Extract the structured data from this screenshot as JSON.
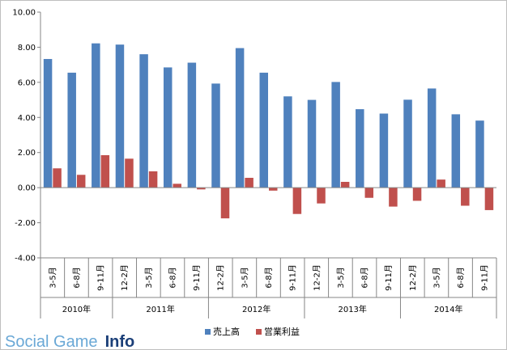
{
  "chart_data": {
    "type": "bar",
    "categories": [
      "3-5月",
      "6-8月",
      "9-11月",
      "12-2月",
      "3-5月",
      "6-8月",
      "9-11月",
      "12-2月",
      "3-5月",
      "6-8月",
      "9-11月",
      "12-2月",
      "3-5月",
      "6-8月",
      "9-11月",
      "12-2月",
      "3-5月",
      "6-8月",
      "9-11月"
    ],
    "groups": [
      {
        "label": "2010年",
        "start": 0,
        "end": 2
      },
      {
        "label": "2011年",
        "start": 3,
        "end": 6
      },
      {
        "label": "2012年",
        "start": 7,
        "end": 10
      },
      {
        "label": "2013年",
        "start": 11,
        "end": 14
      },
      {
        "label": "2014年",
        "start": 15,
        "end": 18
      }
    ],
    "series": [
      {
        "name": "売上高",
        "color": "#4f81bd",
        "values": [
          7.33,
          6.55,
          8.22,
          8.15,
          7.6,
          6.85,
          7.12,
          5.93,
          7.95,
          6.55,
          5.2,
          5.0,
          6.02,
          4.47,
          4.22,
          5.01,
          5.65,
          4.18,
          3.82
        ]
      },
      {
        "name": "営業利益",
        "color": "#c0504d",
        "values": [
          1.1,
          0.73,
          1.85,
          1.65,
          0.93,
          0.22,
          -0.1,
          -1.75,
          0.56,
          -0.17,
          -1.5,
          -0.9,
          0.33,
          -0.58,
          -1.08,
          -0.75,
          0.46,
          -1.03,
          -1.28
        ]
      }
    ],
    "yticks": [
      "10.00",
      "8.00",
      "6.00",
      "4.00",
      "2.00",
      "0.00",
      "-2.00",
      "-4.00"
    ],
    "ylim": [
      -4,
      10
    ],
    "legend_position": "bottom",
    "grid": false
  },
  "watermark": {
    "part1": "Social Game",
    "part2": "Info"
  }
}
